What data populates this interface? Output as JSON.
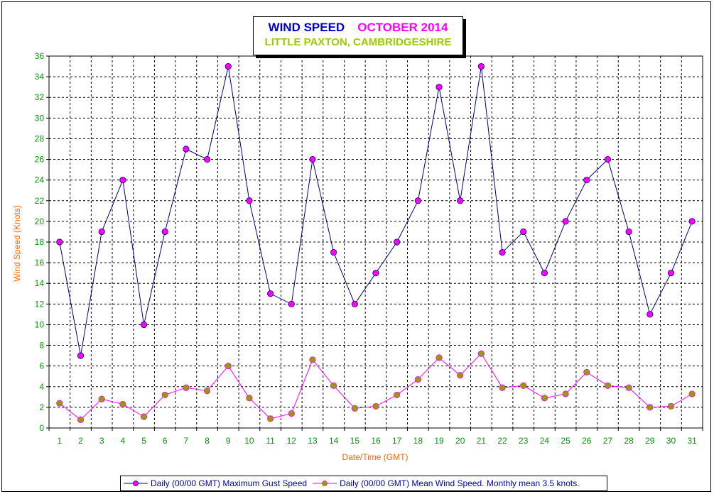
{
  "title": {
    "left": "WIND SPEED",
    "right": "OCTOBER 2014",
    "subtitle": "LITTLE PAXTON, CAMBRIDGESHIRE"
  },
  "legend": {
    "gust_label": "Daily (00/00 GMT) Maximum Gust Speed",
    "mean_label": "Daily (00/00 GMT) Mean Wind Speed. Monthly mean 3.5 knots."
  },
  "chart_data": {
    "type": "line",
    "xlabel": "Date/Time (GMT)",
    "ylabel": "Wind Speed (Knots)",
    "ylim": [
      0,
      36
    ],
    "ytick_step": 2,
    "grid": true,
    "legend_position": "bottom",
    "x": [
      1,
      2,
      3,
      4,
      5,
      6,
      7,
      8,
      9,
      10,
      11,
      12,
      13,
      14,
      15,
      16,
      17,
      18,
      19,
      20,
      21,
      22,
      23,
      24,
      25,
      26,
      27,
      28,
      29,
      30,
      31
    ],
    "series": [
      {
        "name": "Daily (00/00 GMT) Maximum Gust Speed",
        "line_color": "#000080",
        "marker_color": "#ff00ff",
        "values": [
          18,
          7,
          19,
          24,
          10,
          19,
          27,
          26,
          35,
          22,
          13,
          12,
          26,
          17,
          12,
          15,
          18,
          22,
          33,
          22,
          35,
          17,
          19,
          15,
          20,
          24,
          26,
          19,
          11,
          15,
          20
        ]
      },
      {
        "name": "Daily (00/00 GMT) Mean Wind Speed. Monthly mean 3.5 knots.",
        "line_color": "#ff00ff",
        "marker_color": "#999900",
        "values": [
          2.4,
          0.8,
          2.8,
          2.3,
          1.1,
          3.2,
          3.9,
          3.6,
          6.0,
          2.9,
          0.9,
          1.4,
          6.6,
          4.1,
          1.9,
          2.1,
          3.2,
          4.7,
          6.8,
          5.1,
          7.2,
          3.9,
          4.1,
          2.9,
          3.3,
          5.4,
          4.1,
          3.9,
          2.0,
          2.1,
          3.3
        ]
      }
    ]
  }
}
